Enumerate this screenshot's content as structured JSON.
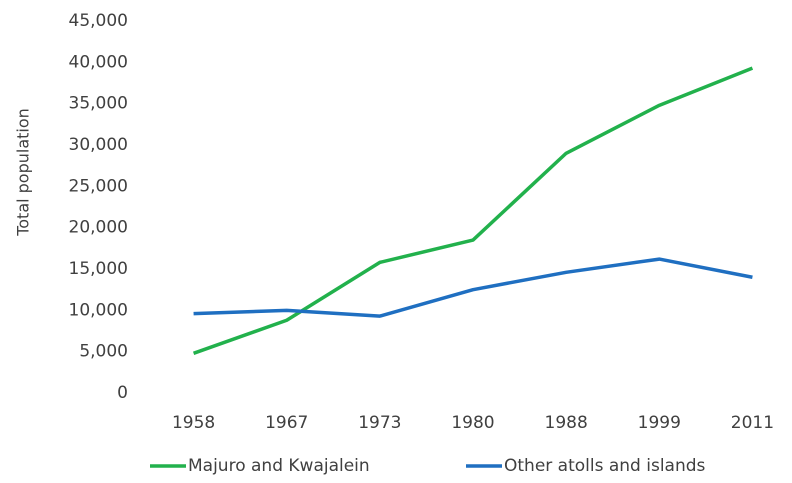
{
  "chart_data": {
    "type": "line",
    "y_label": "Total population",
    "categories": [
      "1958",
      "1967",
      "1973",
      "1980",
      "1988",
      "1999",
      "2011"
    ],
    "series": [
      {
        "name": "Majuro and Kwajalein",
        "color": "#22b14c",
        "values": [
          4800,
          8800,
          15800,
          18500,
          29000,
          34800,
          39300
        ]
      },
      {
        "name": "Other atolls and islands",
        "color": "#1f6fc1",
        "values": [
          9600,
          10000,
          9300,
          12500,
          14600,
          16200,
          14000
        ]
      }
    ],
    "ylim": [
      0,
      45000
    ],
    "yticks": [
      0,
      {
        "value": 5000,
        "label": "5,000"
      },
      {
        "value": 10000,
        "label": "10,000"
      },
      {
        "value": 15000,
        "label": "15,000"
      },
      {
        "value": 20000,
        "label": "20,000"
      },
      {
        "value": 25000,
        "label": "25,000"
      },
      {
        "value": 30000,
        "label": "30,000"
      },
      {
        "value": 35000,
        "label": "35,000"
      },
      {
        "value": 40000,
        "label": "40,000"
      },
      {
        "value": 45000,
        "label": "45,000"
      }
    ],
    "grid": false,
    "legend": "bottom"
  }
}
